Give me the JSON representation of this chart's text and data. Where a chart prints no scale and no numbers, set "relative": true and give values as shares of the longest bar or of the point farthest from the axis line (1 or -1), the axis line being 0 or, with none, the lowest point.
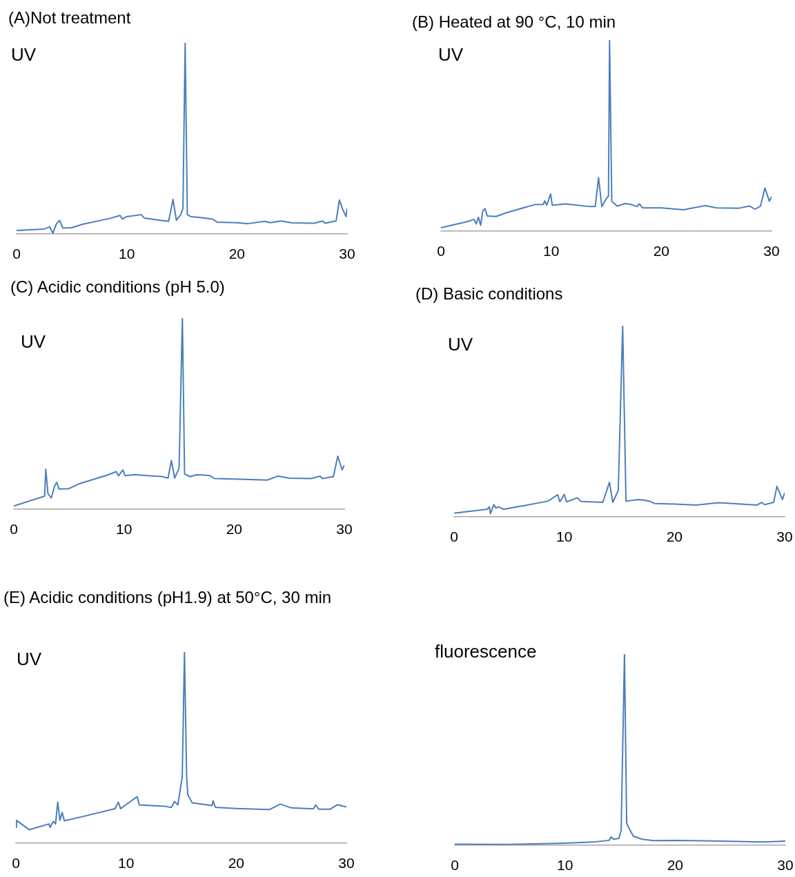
{
  "chart_data": [
    {
      "type": "line",
      "title": "(A)Not treatment",
      "annotations": [
        "UV"
      ],
      "relative": true,
      "marker": "none",
      "color": "#4a7ebb",
      "xlim": [
        0,
        30
      ],
      "xticks": [
        0,
        10,
        20,
        30
      ],
      "x": [
        0,
        2.5,
        3,
        3.3,
        3.6,
        3.9,
        4.2,
        5,
        6,
        8.5,
        9.4,
        9.6,
        10,
        11.3,
        11.6,
        13,
        13.8,
        14.2,
        14.5,
        14.9,
        15.1,
        15.3,
        15.5,
        15.8,
        16.5,
        17.8,
        18.2,
        20,
        21,
        22.5,
        23,
        24,
        25,
        27,
        27.8,
        28,
        29,
        29.3,
        29.6,
        29.9,
        30
      ],
      "values": [
        0.017,
        0.025,
        0.036,
        0.003,
        0.05,
        0.07,
        0.03,
        0.032,
        0.05,
        0.081,
        0.096,
        0.077,
        0.09,
        0.1,
        0.082,
        0.071,
        0.065,
        0.18,
        0.071,
        0.1,
        0.133,
        1,
        0.1,
        0.09,
        0.086,
        0.077,
        0.061,
        0.058,
        0.053,
        0.065,
        0.058,
        0.067,
        0.057,
        0.055,
        0.067,
        0.055,
        0.067,
        0.177,
        0.127,
        0.09,
        0.134
      ]
    },
    {
      "type": "line",
      "title": "(B) Heated at 90 °C, 10 min",
      "annotations": [
        "UV"
      ],
      "relative": true,
      "marker": "none",
      "color": "#4a7ebb",
      "xlim": [
        0,
        30
      ],
      "xticks": [
        0,
        10,
        20,
        30
      ],
      "x": [
        0,
        2.5,
        3,
        3.2,
        3.4,
        3.6,
        3.8,
        4,
        4.2,
        5,
        6,
        8.5,
        9.3,
        9.4,
        9.6,
        9.95,
        10.1,
        11.3,
        13.5,
        14,
        14.3,
        14.6,
        15,
        15.2,
        15.3,
        15.5,
        16,
        16.7,
        17.3,
        17.8,
        18,
        18.3,
        20,
        22,
        24,
        25,
        27,
        28,
        28.5,
        29,
        29.4,
        29.8,
        30
      ],
      "values": [
        0.017,
        0.051,
        0.061,
        0.037,
        0.072,
        0.03,
        0.107,
        0.117,
        0.079,
        0.076,
        0.097,
        0.138,
        0.139,
        0.158,
        0.135,
        0.194,
        0.135,
        0.142,
        0.128,
        0.128,
        0.28,
        0.128,
        0.169,
        0.183,
        1,
        0.156,
        0.13,
        0.144,
        0.138,
        0.128,
        0.142,
        0.121,
        0.121,
        0.111,
        0.133,
        0.121,
        0.119,
        0.131,
        0.114,
        0.131,
        0.225,
        0.156,
        0.18
      ]
    },
    {
      "type": "line",
      "title": "(C) Acidic conditions (pH 5.0)",
      "annotations": [
        "UV"
      ],
      "relative": true,
      "marker": "none",
      "color": "#4a7ebb",
      "xlim": [
        0,
        30
      ],
      "xticks": [
        0,
        10,
        20,
        30
      ],
      "x": [
        0,
        2.8,
        2.9,
        3.1,
        3.4,
        3.7,
        3.9,
        4.1,
        5,
        6,
        8.5,
        9.3,
        9.5,
        9.9,
        10.1,
        11,
        13.5,
        14,
        14.3,
        14.6,
        15,
        15.3,
        15.5,
        16,
        16.6,
        17.2,
        17.8,
        18.2,
        20,
        23,
        24,
        25,
        27,
        27.8,
        28,
        29,
        29.4,
        29.8,
        30
      ],
      "values": [
        0.016,
        0.068,
        0.209,
        0.081,
        0.058,
        0.12,
        0.14,
        0.105,
        0.107,
        0.134,
        0.178,
        0.196,
        0.175,
        0.205,
        0.175,
        0.18,
        0.17,
        0.162,
        0.255,
        0.162,
        0.215,
        1,
        0.183,
        0.17,
        0.18,
        0.178,
        0.175,
        0.16,
        0.157,
        0.152,
        0.173,
        0.162,
        0.16,
        0.173,
        0.16,
        0.17,
        0.277,
        0.205,
        0.23
      ]
    },
    {
      "type": "line",
      "title": "(D) Basic conditions",
      "annotations": [
        "UV"
      ],
      "relative": true,
      "marker": "none",
      "color": "#4a7ebb",
      "xlim": [
        0,
        30
      ],
      "xticks": [
        0,
        10,
        20,
        30
      ],
      "x": [
        0,
        3,
        3.2,
        3.3,
        3.6,
        3.8,
        4,
        4.5,
        6,
        8.5,
        9.4,
        9.6,
        10,
        10.2,
        11.2,
        11.5,
        13.5,
        14.1,
        14.4,
        14.9,
        15.3,
        15.6,
        16.7,
        17.2,
        17.8,
        18.2,
        20,
        22,
        24,
        26,
        27.5,
        27.9,
        28.2,
        29,
        29.3,
        29.8,
        30
      ],
      "values": [
        0.018,
        0.039,
        0.051,
        0.016,
        0.063,
        0.045,
        0.051,
        0.039,
        0.054,
        0.081,
        0.115,
        0.078,
        0.117,
        0.078,
        0.099,
        0.08,
        0.075,
        0.18,
        0.075,
        0.137,
        1,
        0.081,
        0.09,
        0.087,
        0.08,
        0.069,
        0.066,
        0.061,
        0.073,
        0.066,
        0.061,
        0.075,
        0.063,
        0.075,
        0.159,
        0.09,
        0.125
      ]
    },
    {
      "type": "line",
      "title": "(E) Acidic conditions (pH1.9) at 50°C, 30 min",
      "annotations": [
        "UV"
      ],
      "relative": true,
      "marker": "none",
      "color": "#4a7ebb",
      "xlim": [
        0,
        30
      ],
      "xticks": [
        0,
        10,
        20,
        30
      ],
      "x": [
        0,
        0.05,
        1.2,
        3,
        3.1,
        3.4,
        3.6,
        3.8,
        4,
        4.2,
        4.4,
        6,
        9,
        9.3,
        9.5,
        11,
        11.2,
        13.5,
        14.1,
        14.4,
        14.7,
        15.1,
        15.3,
        15.5,
        15.6,
        16,
        16.7,
        17.8,
        17.9,
        18.1,
        20,
        22,
        23,
        24,
        25,
        27,
        27.2,
        27.5,
        28.5,
        29.2,
        30
      ],
      "values": [
        0.082,
        0.119,
        0.07,
        0.1,
        0.082,
        0.113,
        0.1,
        0.214,
        0.119,
        0.16,
        0.117,
        0.138,
        0.18,
        0.214,
        0.18,
        0.243,
        0.2,
        0.193,
        0.186,
        0.217,
        0.2,
        0.346,
        1,
        0.346,
        0.254,
        0.211,
        0.205,
        0.196,
        0.221,
        0.187,
        0.181,
        0.177,
        0.175,
        0.204,
        0.184,
        0.179,
        0.199,
        0.177,
        0.177,
        0.201,
        0.189
      ]
    },
    {
      "type": "line",
      "annotations": [
        "fluorescence"
      ],
      "relative": true,
      "marker": "none",
      "color": "#4a7ebb",
      "xlim": [
        0,
        30
      ],
      "xticks": [
        0,
        10,
        20,
        30
      ],
      "x": [
        0,
        5,
        10,
        12.5,
        14,
        14.2,
        14.4,
        14.9,
        15.1,
        15.4,
        15.6,
        15.8,
        16.2,
        17,
        18,
        20,
        25,
        28,
        30
      ],
      "values": [
        0.005,
        0.004,
        0.01,
        0.016,
        0.025,
        0.043,
        0.031,
        0.035,
        0.078,
        1,
        0.115,
        0.09,
        0.047,
        0.031,
        0.024,
        0.025,
        0.02,
        0.016,
        0.021
      ]
    }
  ]
}
